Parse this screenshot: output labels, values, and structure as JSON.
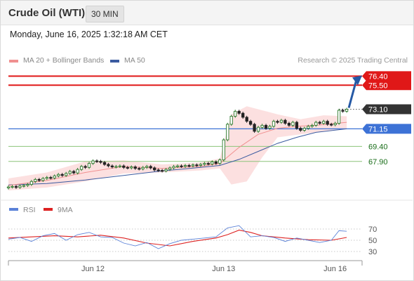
{
  "header": {
    "instrument": "Crude Oil (WTI)",
    "timeframe": "30 MIN"
  },
  "timestamp": "Monday, June 16, 2025 1:32:18 AM CET",
  "credit": "Research © 2025 Trading Central",
  "colors": {
    "resistance": "#e01818",
    "pivot": "#3d72d6",
    "support": "#8cc47a",
    "price_tag": "#333333",
    "candle_up": "#2c7a2c",
    "candle_down": "#222222",
    "bollinger": "#fbd5d5",
    "ma20": "#f09090",
    "ma50": "#3b5ba0",
    "arrow": "#2659a5",
    "rsi": "#5b82d8",
    "rsi_ma": "#dd2222"
  },
  "chart_data": [
    {
      "type": "line",
      "title": "",
      "legend": [
        {
          "name": "MA 20 + Bollinger Bands",
          "color": "#f09090"
        },
        {
          "name": "MA 50",
          "color": "#3b5ba0"
        }
      ],
      "legend_position": "top-left",
      "x_ticks": [
        "Jun 12",
        "Jun 13",
        "Jun 16"
      ],
      "ylim": [
        64.8,
        77.2
      ],
      "levels": [
        {
          "value": 76.4,
          "label": "76.40",
          "kind": "resistance"
        },
        {
          "value": 75.5,
          "label": "75.50",
          "kind": "resistance"
        },
        {
          "value": 73.1,
          "label": "73.10",
          "kind": "last"
        },
        {
          "value": 71.15,
          "label": "71.15",
          "kind": "pivot"
        },
        {
          "value": 69.4,
          "label": "69.40",
          "kind": "support"
        },
        {
          "value": 67.9,
          "label": "67.90",
          "kind": "support"
        }
      ],
      "series": [
        {
          "name": "Price",
          "points": [
            [
              0,
              65.35
            ],
            [
              1,
              65.4
            ],
            [
              2,
              65.3
            ],
            [
              3,
              65.45
            ],
            [
              4,
              65.5
            ],
            [
              5,
              65.6
            ],
            [
              6,
              65.9
            ],
            [
              7,
              66.1
            ],
            [
              8,
              66.0
            ],
            [
              9,
              66.2
            ],
            [
              10,
              66.3
            ],
            [
              11,
              66.25
            ],
            [
              12,
              66.45
            ],
            [
              13,
              66.6
            ],
            [
              14,
              66.5
            ],
            [
              15,
              66.7
            ],
            [
              16,
              66.9
            ],
            [
              17,
              66.75
            ],
            [
              18,
              67.1
            ],
            [
              19,
              67.4
            ],
            [
              20,
              67.3
            ],
            [
              21,
              67.7
            ],
            [
              22,
              67.95
            ],
            [
              23,
              67.9
            ],
            [
              24,
              67.8
            ],
            [
              25,
              67.6
            ],
            [
              26,
              67.45
            ],
            [
              27,
              67.35
            ],
            [
              28,
              67.4
            ],
            [
              29,
              67.45
            ],
            [
              30,
              67.3
            ],
            [
              31,
              67.25
            ],
            [
              32,
              67.35
            ],
            [
              33,
              67.2
            ],
            [
              34,
              67.15
            ],
            [
              35,
              67.3
            ],
            [
              36,
              67.4
            ],
            [
              37,
              67.25
            ],
            [
              38,
              67.05
            ],
            [
              39,
              67.0
            ],
            [
              40,
              66.95
            ],
            [
              41,
              67.1
            ],
            [
              42,
              67.25
            ],
            [
              43,
              67.4
            ],
            [
              44,
              67.45
            ],
            [
              45,
              67.4
            ],
            [
              46,
              67.5
            ],
            [
              47,
              67.45
            ],
            [
              48,
              67.55
            ],
            [
              49,
              67.5
            ],
            [
              50,
              67.6
            ],
            [
              51,
              67.7
            ],
            [
              52,
              67.65
            ],
            [
              53,
              67.85
            ],
            [
              54,
              67.7
            ],
            [
              55,
              68.05
            ],
            [
              56,
              70.05
            ],
            [
              57,
              71.6
            ],
            [
              58,
              72.4
            ],
            [
              59,
              72.9
            ],
            [
              60,
              72.7
            ],
            [
              61,
              72.3
            ],
            [
              62,
              71.9
            ],
            [
              63,
              71.6
            ],
            [
              64,
              70.9
            ],
            [
              65,
              71.3
            ],
            [
              66,
              71.5
            ],
            [
              67,
              71.2
            ],
            [
              68,
              71.4
            ],
            [
              69,
              71.9
            ],
            [
              70,
              71.8
            ],
            [
              71,
              72.0
            ],
            [
              72,
              71.7
            ],
            [
              73,
              71.5
            ],
            [
              74,
              71.8
            ],
            [
              75,
              71.2
            ],
            [
              76,
              71.0
            ],
            [
              77,
              71.2
            ],
            [
              78,
              71.4
            ],
            [
              79,
              71.5
            ],
            [
              80,
              71.8
            ],
            [
              81,
              71.7
            ],
            [
              82,
              71.9
            ],
            [
              83,
              71.6
            ],
            [
              84,
              71.55
            ],
            [
              85,
              71.7
            ],
            [
              86,
              73.0
            ],
            [
              87,
              72.9
            ],
            [
              88,
              73.1
            ]
          ]
        },
        {
          "name": "MA 20",
          "points": [
            [
              0,
              65.5
            ],
            [
              10,
              66.0
            ],
            [
              20,
              66.8
            ],
            [
              30,
              67.4
            ],
            [
              40,
              67.2
            ],
            [
              50,
              67.4
            ],
            [
              55,
              67.7
            ],
            [
              60,
              69.3
            ],
            [
              65,
              70.6
            ],
            [
              70,
              71.2
            ],
            [
              75,
              71.4
            ],
            [
              80,
              71.5
            ],
            [
              88,
              71.8
            ]
          ]
        },
        {
          "name": "MA 50",
          "points": [
            [
              0,
              65.55
            ],
            [
              10,
              65.7
            ],
            [
              20,
              66.05
            ],
            [
              30,
              66.5
            ],
            [
              40,
              66.95
            ],
            [
              50,
              67.3
            ],
            [
              55,
              67.5
            ],
            [
              60,
              68.1
            ],
            [
              65,
              68.9
            ],
            [
              70,
              69.7
            ],
            [
              75,
              70.3
            ],
            [
              80,
              70.8
            ],
            [
              88,
              71.15
            ]
          ]
        }
      ],
      "bollinger": {
        "upper": [
          [
            0,
            66.2
          ],
          [
            10,
            66.8
          ],
          [
            20,
            67.9
          ],
          [
            30,
            68.0
          ],
          [
            40,
            67.6
          ],
          [
            50,
            67.8
          ],
          [
            55,
            68.2
          ],
          [
            58,
            72.6
          ],
          [
            62,
            73.4
          ],
          [
            66,
            73.0
          ],
          [
            70,
            72.6
          ],
          [
            76,
            72.1
          ],
          [
            82,
            72.5
          ],
          [
            88,
            72.4
          ]
        ],
        "lower": [
          [
            0,
            65.0
          ],
          [
            10,
            65.3
          ],
          [
            20,
            65.9
          ],
          [
            30,
            66.7
          ],
          [
            40,
            66.8
          ],
          [
            50,
            67.0
          ],
          [
            55,
            67.2
          ],
          [
            58,
            65.6
          ],
          [
            62,
            65.9
          ],
          [
            66,
            68.3
          ],
          [
            70,
            70.3
          ],
          [
            76,
            70.6
          ],
          [
            82,
            70.9
          ],
          [
            88,
            71.2
          ]
        ]
      }
    },
    {
      "type": "line",
      "title": "",
      "legend": [
        {
          "name": "RSI",
          "color": "#5b82d8"
        },
        {
          "name": "9MA",
          "color": "#dd2222"
        }
      ],
      "legend_position": "top-left",
      "y_ticks": [
        "70",
        "50",
        "30"
      ],
      "ylim": [
        20,
        85
      ],
      "series": [
        {
          "name": "RSI",
          "points": [
            [
              0,
              52
            ],
            [
              3,
              55
            ],
            [
              6,
              48
            ],
            [
              9,
              58
            ],
            [
              12,
              62
            ],
            [
              15,
              50
            ],
            [
              18,
              60
            ],
            [
              21,
              64
            ],
            [
              24,
              56
            ],
            [
              27,
              55
            ],
            [
              30,
              45
            ],
            [
              33,
              40
            ],
            [
              36,
              46
            ],
            [
              39,
              35
            ],
            [
              42,
              44
            ],
            [
              45,
              50
            ],
            [
              48,
              52
            ],
            [
              51,
              54
            ],
            [
              54,
              56
            ],
            [
              57,
              72
            ],
            [
              60,
              76
            ],
            [
              63,
              56
            ],
            [
              66,
              58
            ],
            [
              69,
              55
            ],
            [
              72,
              48
            ],
            [
              75,
              54
            ],
            [
              78,
              50
            ],
            [
              81,
              46
            ],
            [
              84,
              50
            ],
            [
              86,
              67
            ],
            [
              88,
              66
            ]
          ]
        },
        {
          "name": "9MA",
          "points": [
            [
              0,
              54
            ],
            [
              6,
              56
            ],
            [
              12,
              58
            ],
            [
              18,
              56
            ],
            [
              24,
              59
            ],
            [
              30,
              54
            ],
            [
              36,
              45
            ],
            [
              42,
              40
            ],
            [
              48,
              48
            ],
            [
              54,
              54
            ],
            [
              57,
              60
            ],
            [
              60,
              68
            ],
            [
              63,
              64
            ],
            [
              66,
              58
            ],
            [
              72,
              54
            ],
            [
              78,
              51
            ],
            [
              84,
              50
            ],
            [
              88,
              55
            ]
          ]
        }
      ]
    }
  ]
}
